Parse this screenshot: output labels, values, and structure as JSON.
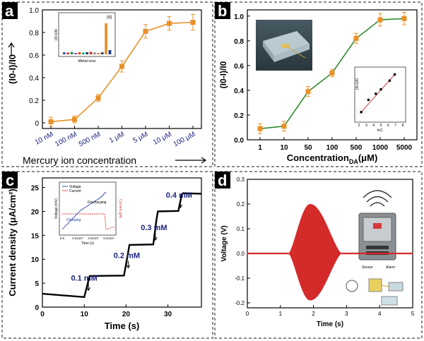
{
  "chart_data": [
    {
      "panel": "a",
      "type": "line",
      "categories": [
        "10 nM",
        "100 nM",
        "500 nM",
        "1 μM",
        "5 μM",
        "10 μM",
        "100 μM"
      ],
      "values": [
        0.01,
        0.03,
        0.22,
        0.5,
        0.81,
        0.88,
        0.89
      ],
      "errors": [
        0.04,
        0.03,
        0.03,
        0.05,
        0.06,
        0.06,
        0.07
      ],
      "ylim": [
        -0.05,
        1.0
      ],
      "yticks": [
        "0",
        "0.2",
        "0.4",
        "0.6",
        "0.8",
        "1.0"
      ],
      "ylabel": "(I0-I)/I0",
      "xlabel": "Mercury ion concentration",
      "color": "#e8902a",
      "inset": {
        "type": "bar",
        "xlabel": "Metal ions",
        "ylabel": "(I0-I)/I0",
        "label": "(d)",
        "values": [
          0.06,
          0.05,
          0.07,
          0.04,
          0.06,
          0.05,
          0.06,
          0.07,
          0.05,
          0.04,
          0.06,
          0.88,
          0.12
        ],
        "colors": [
          "#3b5ba9",
          "#c0392b",
          "#2e8b57",
          "#8e44ad",
          "#d35400",
          "#16a085",
          "#2c3e50",
          "#c0392b",
          "#7f8c8d",
          "#e67e22",
          "#34495e",
          "#e8902a",
          "#1f3a93"
        ]
      }
    },
    {
      "panel": "b",
      "type": "line",
      "categories": [
        "1",
        "10",
        "50",
        "100",
        "500",
        "1000",
        "5000"
      ],
      "values": [
        0.09,
        0.11,
        0.39,
        0.54,
        0.82,
        0.97,
        0.98
      ],
      "errors": [
        0.04,
        0.04,
        0.04,
        0.03,
        0.04,
        0.05,
        0.05
      ],
      "ylim": [
        0.0,
        1.05
      ],
      "yticks": [
        "0.0",
        "0.2",
        "0.4",
        "0.6",
        "0.8",
        "1.0"
      ],
      "ylabel": "(I0-I)/I0",
      "xlabel_main": "Concentration",
      "xlabel_sub": "DA",
      "xlabel_unit": "(μM)",
      "color": "#2e8b2e",
      "inset": {
        "type": "scatter",
        "x": [
          2.3,
          3.3,
          4.3,
          5.0,
          6.2,
          6.9
        ],
        "y": [
          0.1,
          0.38,
          0.52,
          0.62,
          0.82,
          0.96
        ],
        "xticks": [
          "2",
          "3",
          "4",
          "5",
          "6",
          "7",
          "8"
        ],
        "xlabel": "lnC",
        "ylabel": "(I0-I)/I0"
      }
    },
    {
      "panel": "c",
      "type": "line",
      "xlabel": "Time (s)",
      "ylabel": "Current density (μA/cm²)",
      "xlim": [
        0,
        38
      ],
      "ylim": [
        0,
        27
      ],
      "xticks": [
        "0",
        "10",
        "20",
        "30"
      ],
      "yticks": [
        "0",
        "5",
        "10",
        "15",
        "20",
        "25"
      ],
      "x": [
        0,
        10,
        11,
        11.3,
        19.5,
        20.5,
        20.8,
        26.5,
        27.3,
        27.6,
        32.5,
        33.3,
        33.6,
        38
      ],
      "y": [
        2.8,
        2.1,
        5.5,
        6.5,
        6.6,
        11.5,
        13.0,
        13.1,
        18.5,
        20.0,
        20.1,
        23.5,
        23.8,
        23.7
      ],
      "annotations": [
        {
          "text": "0.1 mM",
          "x": 11.0
        },
        {
          "text": "0.2 mM",
          "x": 20.5
        },
        {
          "text": "0.3 mM",
          "x": 27.0
        },
        {
          "text": "0.4 mM",
          "x": 33.0
        }
      ],
      "inset": {
        "legend": [
          "Voltage",
          "Current"
        ],
        "labels": [
          "Charging",
          "Discharging"
        ],
        "xlabel": "Time (s)",
        "ylabel_left": "Voltage (mV)",
        "ylabel_right": "Current (pA)",
        "xticks": [
          "0.0",
          "2.0x10⁴",
          "4.0x10⁴",
          "6.0x10⁴"
        ]
      }
    },
    {
      "panel": "d",
      "type": "line",
      "xlabel": "Time (s)",
      "ylabel": "Voltage (V)",
      "xlim": [
        0,
        5
      ],
      "ylim": [
        -0.22,
        0.3
      ],
      "xticks": [
        "0",
        "1",
        "2",
        "3",
        "4",
        "5"
      ],
      "yticks": [
        "-0.2",
        "-0.1",
        "0.0",
        "0.1",
        "0.2",
        "0.3"
      ],
      "signal": {
        "baseline": 0.0,
        "start": 1.25,
        "end": 2.85,
        "peak_time": 1.9,
        "amplitude": 0.2
      },
      "color": "#d42a2a",
      "inset": {
        "labels": [
          "Sensor",
          "Alarm"
        ]
      }
    }
  ],
  "panel_labels": [
    "a",
    "b",
    "c",
    "d"
  ],
  "colors": {
    "letter_bg": "#000000",
    "border": "#444444"
  }
}
